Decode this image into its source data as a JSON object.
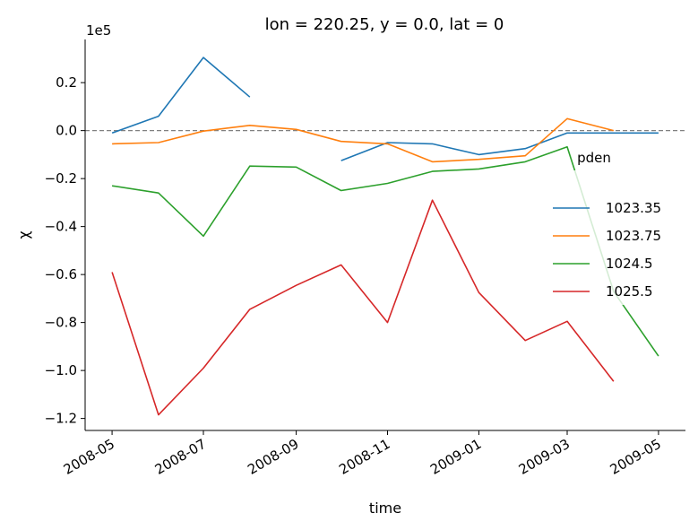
{
  "chart_data": {
    "type": "line",
    "title": "lon = 220.25, y = 0.0, lat = 0",
    "xlabel": "time",
    "ylabel": "χ",
    "y_scale_label": "1e5",
    "ylim": [
      -1.25,
      0.38
    ],
    "xlim": [
      "2008-04-13",
      "2009-05-19"
    ],
    "y_ticks": [
      {
        "value": 0.2,
        "label": "0.2"
      },
      {
        "value": 0.0,
        "label": "0.0"
      },
      {
        "value": -0.2,
        "label": "−0.2"
      },
      {
        "value": -0.4,
        "label": "−0.4"
      },
      {
        "value": -0.6,
        "label": "−0.6"
      },
      {
        "value": -0.8,
        "label": "−0.8"
      },
      {
        "value": -1.0,
        "label": "−1.0"
      },
      {
        "value": -1.2,
        "label": "−1.2"
      }
    ],
    "x_ticks": [
      {
        "date": "2008-05-01",
        "label": "2008-05"
      },
      {
        "date": "2008-07-01",
        "label": "2008-07"
      },
      {
        "date": "2008-09-01",
        "label": "2008-09"
      },
      {
        "date": "2008-11-01",
        "label": "2008-11"
      },
      {
        "date": "2009-01-01",
        "label": "2009-01"
      },
      {
        "date": "2009-03-01",
        "label": "2009-03"
      },
      {
        "date": "2009-05-01",
        "label": "2009-05"
      }
    ],
    "x": [
      "2008-05-01",
      "2008-06-01",
      "2008-07-01",
      "2008-08-01",
      "2008-09-01",
      "2008-10-01",
      "2008-11-01",
      "2008-12-01",
      "2009-01-01",
      "2009-02-01",
      "2009-03-01",
      "2009-04-01",
      "2009-05-01"
    ],
    "reference_line": {
      "value": 0.0,
      "style": "dashed",
      "color": "#808080"
    },
    "legend": {
      "title": "pden",
      "placement": "center-right"
    },
    "series": [
      {
        "name": "1023.35",
        "color": "#1f77b4",
        "values": [
          -0.01,
          0.06,
          0.305,
          0.14,
          null,
          -0.125,
          -0.05,
          -0.055,
          -0.1,
          -0.075,
          -0.01,
          -0.01,
          -0.01
        ]
      },
      {
        "name": "1023.75",
        "color": "#ff7f0e",
        "values": [
          -0.055,
          -0.05,
          -0.002,
          0.022,
          0.005,
          -0.045,
          -0.055,
          -0.13,
          -0.12,
          -0.105,
          0.05,
          0.0,
          null
        ]
      },
      {
        "name": "1024.5",
        "color": "#2ca02c",
        "values": [
          -0.23,
          -0.26,
          -0.44,
          -0.148,
          -0.152,
          -0.25,
          -0.22,
          -0.17,
          -0.16,
          -0.13,
          -0.068,
          -0.67,
          -0.94
        ]
      },
      {
        "name": "1025.5",
        "color": "#d62728",
        "values": [
          -0.59,
          -1.185,
          -0.99,
          -0.745,
          -0.645,
          -0.56,
          -0.8,
          -0.29,
          -0.675,
          -0.875,
          -0.795,
          -1.045,
          null
        ]
      }
    ]
  }
}
